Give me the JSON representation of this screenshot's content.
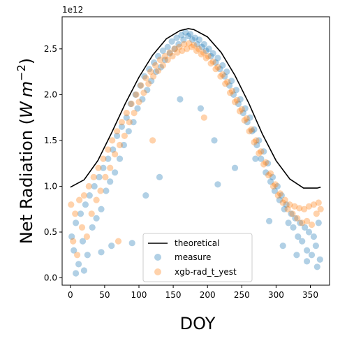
{
  "chart_data": {
    "type": "scatter",
    "xlabel": "DOY",
    "ylabel_prefix": "Net Radiation (",
    "ylabel_unit_W": "W",
    "ylabel_unit_m": "m",
    "ylabel_exp": "−2",
    "ylabel_suffix": ")",
    "y_offset_label": "1e12",
    "xlim": [
      -12,
      378
    ],
    "ylim": [
      -0.08,
      2.85
    ],
    "xticks": [
      0,
      50,
      100,
      150,
      200,
      250,
      300,
      350
    ],
    "yticks": [
      0.0,
      0.5,
      1.0,
      1.5,
      2.0,
      2.5
    ],
    "ytick_labels": [
      "0.0",
      "0.5",
      "1.0",
      "1.5",
      "2.0",
      "2.5"
    ],
    "legend_position": "lower center",
    "series": [
      {
        "name": "theoretical",
        "kind": "line",
        "color": "#000000",
        "x": [
          0,
          20,
          40,
          60,
          80,
          100,
          120,
          140,
          160,
          172,
          180,
          200,
          220,
          240,
          260,
          280,
          300,
          320,
          340,
          360,
          365
        ],
        "y": [
          0.99,
          1.07,
          1.28,
          1.58,
          1.9,
          2.19,
          2.43,
          2.61,
          2.7,
          2.72,
          2.71,
          2.63,
          2.46,
          2.21,
          1.91,
          1.57,
          1.28,
          1.08,
          0.98,
          0.98,
          0.99
        ]
      },
      {
        "name": "measure",
        "kind": "scatter",
        "color": "#1f77b4",
        "x": [
          2,
          5,
          8,
          12,
          15,
          18,
          22,
          25,
          28,
          32,
          35,
          38,
          42,
          45,
          48,
          52,
          55,
          58,
          62,
          65,
          68,
          72,
          75,
          78,
          82,
          85,
          88,
          92,
          95,
          98,
          102,
          105,
          108,
          112,
          115,
          118,
          122,
          125,
          128,
          132,
          135,
          138,
          142,
          145,
          148,
          152,
          155,
          158,
          162,
          165,
          168,
          172,
          175,
          178,
          182,
          185,
          188,
          192,
          195,
          198,
          202,
          205,
          208,
          212,
          215,
          218,
          222,
          225,
          228,
          232,
          235,
          238,
          242,
          245,
          248,
          252,
          255,
          258,
          262,
          265,
          268,
          272,
          275,
          278,
          282,
          285,
          288,
          292,
          295,
          298,
          302,
          305,
          308,
          312,
          315,
          318,
          322,
          325,
          328,
          332,
          335,
          338,
          342,
          345,
          348,
          352,
          355,
          358,
          362,
          364,
          8,
          20,
          45,
          60,
          90,
          110,
          130,
          160,
          190,
          210,
          215,
          240,
          270,
          290,
          310,
          330,
          345,
          360
        ],
        "y": [
          0.45,
          0.3,
          0.6,
          0.15,
          0.7,
          0.4,
          0.8,
          0.25,
          0.9,
          0.55,
          1.0,
          0.65,
          1.1,
          0.75,
          1.2,
          0.95,
          1.3,
          1.05,
          1.4,
          1.15,
          1.55,
          1.3,
          1.65,
          1.45,
          1.75,
          1.6,
          1.9,
          1.7,
          2.0,
          1.85,
          2.1,
          1.95,
          2.2,
          2.05,
          2.28,
          2.15,
          2.35,
          2.25,
          2.42,
          2.3,
          2.48,
          2.38,
          2.52,
          2.45,
          2.58,
          2.5,
          2.62,
          2.55,
          2.65,
          2.6,
          2.68,
          2.64,
          2.66,
          2.6,
          2.62,
          2.55,
          2.6,
          2.52,
          2.55,
          2.48,
          2.5,
          2.42,
          2.45,
          2.35,
          2.4,
          2.28,
          2.32,
          2.2,
          2.25,
          2.1,
          2.15,
          2.0,
          2.05,
          1.9,
          1.95,
          1.8,
          1.85,
          1.7,
          1.75,
          1.6,
          1.62,
          1.45,
          1.5,
          1.3,
          1.38,
          1.15,
          1.25,
          1.05,
          1.1,
          0.95,
          1.0,
          0.85,
          0.9,
          0.75,
          0.8,
          0.6,
          0.7,
          0.55,
          0.65,
          0.45,
          0.6,
          0.4,
          0.55,
          0.3,
          0.5,
          0.25,
          0.45,
          0.35,
          0.6,
          0.2,
          0.05,
          0.08,
          0.28,
          0.35,
          0.38,
          0.9,
          1.1,
          1.95,
          1.85,
          1.5,
          1.02,
          1.2,
          1.3,
          0.62,
          0.35,
          0.25,
          0.18,
          0.12
        ]
      },
      {
        "name": "xgb-rad_t_yest",
        "kind": "scatter",
        "color": "#ff7f0e",
        "x": [
          1,
          4,
          7,
          10,
          13,
          17,
          20,
          24,
          27,
          31,
          34,
          38,
          41,
          44,
          48,
          51,
          55,
          58,
          61,
          65,
          68,
          72,
          75,
          79,
          82,
          86,
          89,
          93,
          96,
          100,
          103,
          107,
          110,
          114,
          117,
          121,
          124,
          128,
          131,
          135,
          138,
          142,
          145,
          149,
          152,
          156,
          159,
          163,
          166,
          170,
          173,
          177,
          180,
          184,
          187,
          191,
          194,
          198,
          201,
          205,
          208,
          212,
          215,
          219,
          222,
          226,
          229,
          233,
          236,
          240,
          243,
          247,
          250,
          254,
          257,
          261,
          264,
          268,
          271,
          275,
          278,
          282,
          285,
          289,
          292,
          296,
          299,
          303,
          306,
          310,
          313,
          317,
          320,
          324,
          327,
          331,
          334,
          338,
          341,
          345,
          348,
          352,
          355,
          359,
          362,
          365,
          70,
          120,
          195
        ],
        "y": [
          0.8,
          0.4,
          0.7,
          0.25,
          0.85,
          0.55,
          0.9,
          0.45,
          1.0,
          0.7,
          1.1,
          0.85,
          1.2,
          0.95,
          1.3,
          1.1,
          1.4,
          1.2,
          1.5,
          1.35,
          1.6,
          1.45,
          1.7,
          1.55,
          1.8,
          1.7,
          1.9,
          1.8,
          2.0,
          1.92,
          2.1,
          2.02,
          2.18,
          2.12,
          2.25,
          2.2,
          2.32,
          2.26,
          2.38,
          2.32,
          2.42,
          2.38,
          2.46,
          2.42,
          2.5,
          2.46,
          2.52,
          2.48,
          2.55,
          2.5,
          2.56,
          2.52,
          2.54,
          2.48,
          2.5,
          2.44,
          2.46,
          2.4,
          2.42,
          2.34,
          2.36,
          2.28,
          2.3,
          2.2,
          2.22,
          2.12,
          2.14,
          2.02,
          2.04,
          1.92,
          1.94,
          1.82,
          1.84,
          1.72,
          1.74,
          1.6,
          1.62,
          1.48,
          1.5,
          1.36,
          1.38,
          1.24,
          1.26,
          1.12,
          1.14,
          1.0,
          1.02,
          0.9,
          0.92,
          0.82,
          0.85,
          0.75,
          0.8,
          0.7,
          0.78,
          0.65,
          0.76,
          0.6,
          0.75,
          0.62,
          0.78,
          0.58,
          0.8,
          0.7,
          0.82,
          0.75,
          0.4,
          1.5,
          1.75
        ]
      }
    ]
  }
}
